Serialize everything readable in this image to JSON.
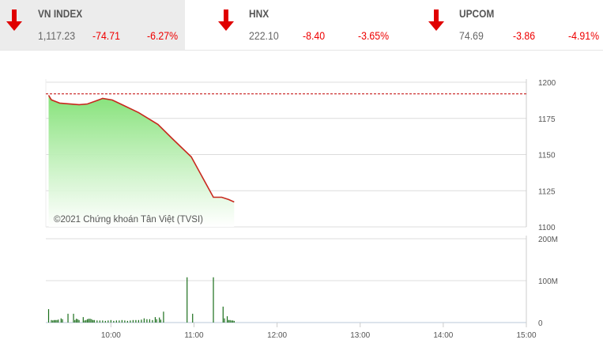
{
  "indices": [
    {
      "name": "VN INDEX",
      "value": "1,117.23",
      "change": "-74.71",
      "percent": "-6.27%",
      "direction": "down",
      "active": true
    },
    {
      "name": "HNX",
      "value": "222.10",
      "change": "-8.40",
      "percent": "-3.65%",
      "direction": "down",
      "active": false
    },
    {
      "name": "UPCOM",
      "value": "74.69",
      "change": "-3.86",
      "percent": "-4.91%",
      "direction": "down",
      "active": false
    }
  ],
  "colors": {
    "down": "#e00000",
    "line": "#c8281e",
    "area_top": "#86e27a",
    "volume": "#1a6e1a",
    "reference": "#c00000"
  },
  "chart_data": [
    {
      "type": "area",
      "watermark": "©2021 Chứng khoán Tân Việt (TVSI)",
      "reference": 1191.94,
      "ylim": [
        1100,
        1200
      ],
      "yticks": [
        "1200",
        "1175",
        "1150",
        "1125",
        "1100"
      ],
      "xlim": [
        "09:15",
        "15:00"
      ],
      "grid": true,
      "points": [
        [
          "09:15",
          1191.0
        ],
        [
          "09:17",
          1187.8
        ],
        [
          "09:23",
          1185.6
        ],
        [
          "09:37",
          1184.5
        ],
        [
          "09:43",
          1185.0
        ],
        [
          "09:49",
          1187.0
        ],
        [
          "09:54",
          1188.8
        ],
        [
          "10:01",
          1187.7
        ],
        [
          "10:08",
          1184.5
        ],
        [
          "10:20",
          1179.0
        ],
        [
          "10:34",
          1170.8
        ],
        [
          "10:45",
          1160.4
        ],
        [
          "10:58",
          1148.4
        ],
        [
          "11:14",
          1120.5
        ],
        [
          "11:20",
          1120.5
        ],
        [
          "11:25",
          1118.9
        ],
        [
          "11:29",
          1117.23
        ]
      ]
    },
    {
      "type": "bar",
      "ylim": [
        0,
        200
      ],
      "yticks": [
        "200M",
        "100M",
        "0"
      ],
      "xticks": [
        "10:00",
        "11:00",
        "12:00",
        "13:00",
        "14:00",
        "15:00"
      ],
      "unit": "M",
      "bars": [
        [
          "09:15",
          32
        ],
        [
          "09:17",
          6
        ],
        [
          "09:18",
          5
        ],
        [
          "09:19",
          6
        ],
        [
          "09:20",
          6
        ],
        [
          "09:21",
          6
        ],
        [
          "09:22",
          7
        ],
        [
          "09:24",
          10
        ],
        [
          "09:25",
          8
        ],
        [
          "09:29",
          21
        ],
        [
          "09:33",
          21
        ],
        [
          "09:34",
          6
        ],
        [
          "09:35",
          9
        ],
        [
          "09:36",
          8
        ],
        [
          "09:37",
          6
        ],
        [
          "09:40",
          13
        ],
        [
          "09:41",
          5
        ],
        [
          "09:42",
          6
        ],
        [
          "09:43",
          8
        ],
        [
          "09:44",
          9
        ],
        [
          "09:45",
          9
        ],
        [
          "09:46",
          8
        ],
        [
          "09:47",
          6
        ],
        [
          "09:48",
          6
        ],
        [
          "09:50",
          5
        ],
        [
          "09:52",
          5
        ],
        [
          "09:54",
          5
        ],
        [
          "09:56",
          4
        ],
        [
          "09:58",
          5
        ],
        [
          "10:00",
          6
        ],
        [
          "10:02",
          4
        ],
        [
          "10:04",
          5
        ],
        [
          "10:06",
          5
        ],
        [
          "10:08",
          6
        ],
        [
          "10:10",
          5
        ],
        [
          "10:12",
          4
        ],
        [
          "10:14",
          5
        ],
        [
          "10:16",
          6
        ],
        [
          "10:18",
          6
        ],
        [
          "10:20",
          6
        ],
        [
          "10:22",
          7
        ],
        [
          "10:24",
          10
        ],
        [
          "10:26",
          8
        ],
        [
          "10:28",
          8
        ],
        [
          "10:30",
          6
        ],
        [
          "10:32",
          13
        ],
        [
          "10:33",
          8
        ],
        [
          "10:35",
          12
        ],
        [
          "10:36",
          7
        ],
        [
          "10:38",
          26
        ],
        [
          "10:55",
          108
        ],
        [
          "10:59",
          21
        ],
        [
          "11:14",
          108
        ],
        [
          "11:21",
          38
        ],
        [
          "11:22",
          10
        ],
        [
          "11:24",
          15
        ],
        [
          "11:25",
          6
        ],
        [
          "11:26",
          6
        ],
        [
          "11:27",
          5
        ],
        [
          "11:28",
          5
        ],
        [
          "11:29",
          4
        ]
      ]
    }
  ]
}
